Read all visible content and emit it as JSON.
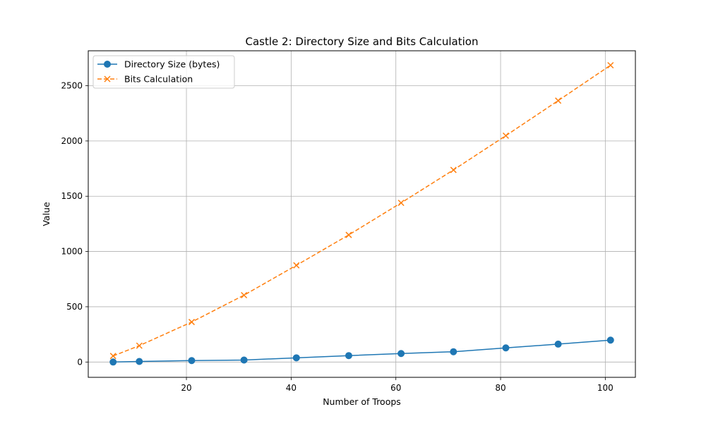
{
  "chart_data": {
    "type": "line",
    "title": "Castle 2: Directory Size and Bits Calculation",
    "xlabel": "Number of Troops",
    "ylabel": "Value",
    "xlim": [
      1.25,
      105.75
    ],
    "ylim": [
      -138.5,
      2816
    ],
    "x_ticks": [
      20,
      40,
      60,
      80,
      100
    ],
    "y_ticks": [
      0,
      500,
      1000,
      1500,
      2000,
      2500
    ],
    "grid": true,
    "legend_position": "top-left",
    "x": [
      6,
      11,
      21,
      31,
      41,
      51,
      61,
      71,
      81,
      91,
      101
    ],
    "series": [
      {
        "name": "Directory Size (bytes)",
        "values": [
          0,
          5,
          13,
          18,
          38,
          58,
          77,
          93,
          128,
          162,
          198
        ],
        "color": "#1f77b4",
        "line_style": "solid",
        "marker": "circle"
      },
      {
        "name": "Bits Calculation",
        "values": [
          55,
          148,
          362,
          605,
          875,
          1150,
          1440,
          1738,
          2048,
          2365,
          2685
        ],
        "color": "#ff7f0e",
        "line_style": "dashed",
        "marker": "x"
      }
    ]
  }
}
